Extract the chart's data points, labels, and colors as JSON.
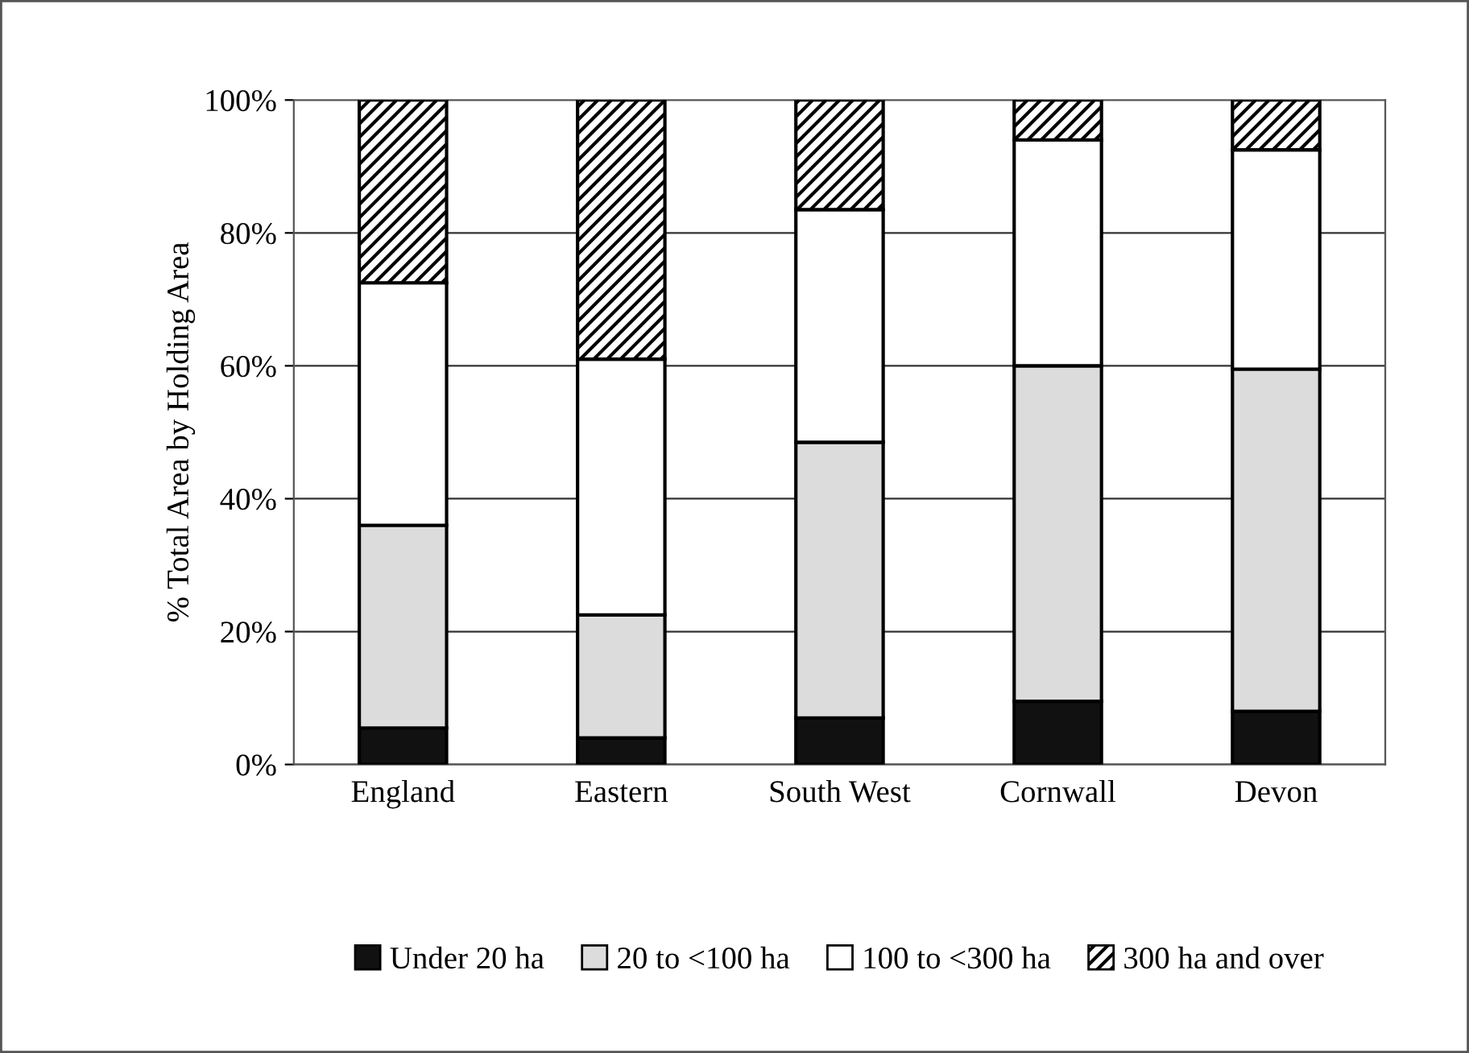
{
  "chart_data": {
    "type": "bar",
    "stacked": true,
    "ylabel": "% Total Area by Holding Area",
    "categories": [
      "England",
      "Eastern",
      "South West",
      "Cornwall",
      "Devon"
    ],
    "series": [
      {
        "name": "Under 20 ha",
        "color": "#111111",
        "values": [
          5.5,
          4,
          7,
          9.5,
          8
        ]
      },
      {
        "name": "20 to <100 ha",
        "color": "#dcdcdc",
        "values": [
          30.5,
          18.5,
          41.5,
          50.5,
          51.5
        ]
      },
      {
        "name": "100 to <300 ha",
        "color": "#ffffff",
        "values": [
          36.5,
          38.5,
          35,
          34,
          33
        ]
      },
      {
        "name": "300 ha and over",
        "color": "#000000",
        "values": [
          27.5,
          39,
          16.5,
          6,
          7.5
        ]
      }
    ],
    "ylim": [
      0,
      100
    ],
    "yticks": [
      {
        "value": 0,
        "label": "0%"
      },
      {
        "value": 20,
        "label": "20%"
      },
      {
        "value": 40,
        "label": "40%"
      },
      {
        "value": 60,
        "label": "60%"
      },
      {
        "value": 80,
        "label": "80%"
      },
      {
        "value": 100,
        "label": "100%"
      }
    ],
    "grid": "y",
    "legend": "bottom"
  }
}
